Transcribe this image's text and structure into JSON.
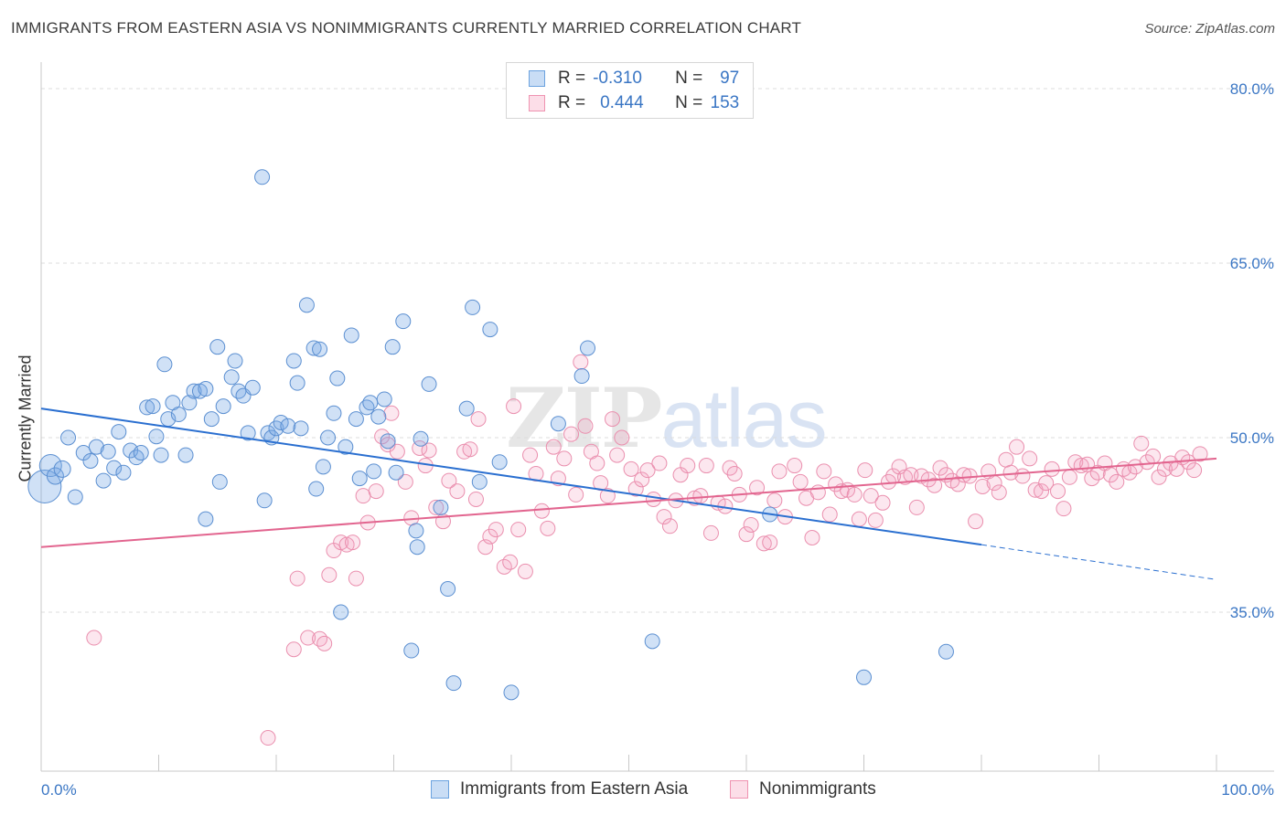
{
  "header": {
    "title": "IMMIGRANTS FROM EASTERN ASIA VS NONIMMIGRANTS CURRENTLY MARRIED CORRELATION CHART",
    "source": "Source: ZipAtlas.com"
  },
  "watermark": {
    "zip": "ZIP",
    "atlas": "atlas"
  },
  "legend": {
    "rows": [
      {
        "r_label": "R =",
        "r_value": "-0.310",
        "n_label": "N =",
        "n_value": "97",
        "color": "#6ba2df"
      },
      {
        "r_label": "R =",
        "r_value": "0.444",
        "n_label": "N =",
        "n_value": "153",
        "color": "#ef93b1"
      }
    ]
  },
  "bottom_legend": {
    "series1": "Immigrants from Eastern Asia",
    "series2": "Nonimmigrants"
  },
  "axes": {
    "ylabel": "Currently Married",
    "x_left_label": "0.0%",
    "x_right_label": "100.0%",
    "y_ticks": [
      "80.0%",
      "65.0%",
      "50.0%",
      "35.0%"
    ]
  },
  "colors": {
    "blue_fill": "rgba(120,170,230,0.35)",
    "blue_stroke": "#5b8fd1",
    "blue_line": "#2a6fd0",
    "pink_fill": "rgba(245,160,190,0.25)",
    "pink_stroke": "#ea8fae",
    "pink_line": "#e2658f",
    "tick_text": "#3a76c4"
  },
  "chart_data": {
    "type": "scatter",
    "x_range": [
      0,
      100
    ],
    "y_range": [
      20,
      82
    ],
    "grid_y": [
      80,
      65,
      50,
      35
    ],
    "series": [
      {
        "name": "Immigrants from Eastern Asia",
        "trend": {
          "x0": 0,
          "y0": 52.5,
          "x1": 80,
          "y1": 40.8,
          "dash_to_x": 100,
          "dash_to_y": 37.8
        },
        "points": [
          [
            0.3,
            45.8,
            18
          ],
          [
            0.8,
            47.6,
            12
          ],
          [
            1.2,
            46.7,
            9
          ],
          [
            1.8,
            47.3,
            9
          ],
          [
            2.3,
            50.0,
            8
          ],
          [
            2.9,
            44.9,
            8
          ],
          [
            3.6,
            48.7,
            8
          ],
          [
            4.2,
            48.0,
            8
          ],
          [
            4.7,
            49.2,
            8
          ],
          [
            5.3,
            46.3,
            8
          ],
          [
            5.7,
            48.8,
            8
          ],
          [
            6.2,
            47.4,
            8
          ],
          [
            6.6,
            50.5,
            8
          ],
          [
            7.0,
            47.0,
            8
          ],
          [
            7.6,
            48.9,
            8
          ],
          [
            8.1,
            48.3,
            8
          ],
          [
            8.5,
            48.7,
            8
          ],
          [
            9.0,
            52.6,
            8
          ],
          [
            9.5,
            52.7,
            8
          ],
          [
            9.8,
            50.1,
            8
          ],
          [
            10.2,
            48.5,
            8
          ],
          [
            10.5,
            56.3,
            8
          ],
          [
            10.8,
            51.6,
            8
          ],
          [
            11.2,
            53.0,
            8
          ],
          [
            11.7,
            52.0,
            8
          ],
          [
            12.3,
            48.5,
            8
          ],
          [
            12.6,
            53.0,
            8
          ],
          [
            13.0,
            54.0,
            8
          ],
          [
            13.5,
            54.0,
            8
          ],
          [
            14.0,
            54.2,
            8
          ],
          [
            14.0,
            43.0,
            8
          ],
          [
            14.5,
            51.6,
            8
          ],
          [
            15.0,
            57.8,
            8
          ],
          [
            15.2,
            46.2,
            8
          ],
          [
            15.5,
            52.7,
            8
          ],
          [
            16.2,
            55.2,
            8
          ],
          [
            16.5,
            56.6,
            8
          ],
          [
            16.8,
            54.0,
            8
          ],
          [
            17.2,
            53.6,
            8
          ],
          [
            17.6,
            50.4,
            8
          ],
          [
            18.0,
            54.3,
            8
          ],
          [
            18.8,
            72.4,
            8
          ],
          [
            19.0,
            44.6,
            8
          ],
          [
            19.3,
            50.4,
            8
          ],
          [
            19.6,
            50.0,
            8
          ],
          [
            20.0,
            50.8,
            8
          ],
          [
            20.4,
            51.3,
            8
          ],
          [
            21.0,
            51.0,
            8
          ],
          [
            21.5,
            56.6,
            8
          ],
          [
            21.8,
            54.7,
            8
          ],
          [
            22.1,
            50.8,
            8
          ],
          [
            22.6,
            61.4,
            8
          ],
          [
            23.2,
            57.7,
            8
          ],
          [
            23.4,
            45.6,
            8
          ],
          [
            23.7,
            57.6,
            8
          ],
          [
            24.0,
            47.5,
            8
          ],
          [
            24.4,
            50.0,
            8
          ],
          [
            24.9,
            52.1,
            8
          ],
          [
            25.2,
            55.1,
            8
          ],
          [
            25.5,
            35.0,
            8
          ],
          [
            25.9,
            49.2,
            8
          ],
          [
            26.4,
            58.8,
            8
          ],
          [
            26.8,
            51.6,
            8
          ],
          [
            27.1,
            46.5,
            8
          ],
          [
            27.7,
            52.6,
            8
          ],
          [
            28.0,
            53.0,
            8
          ],
          [
            28.3,
            47.1,
            8
          ],
          [
            28.7,
            51.8,
            8
          ],
          [
            29.2,
            53.3,
            8
          ],
          [
            29.5,
            49.7,
            8
          ],
          [
            29.9,
            57.8,
            8
          ],
          [
            30.2,
            47.0,
            8
          ],
          [
            30.8,
            60.0,
            8
          ],
          [
            31.5,
            31.7,
            8
          ],
          [
            31.9,
            42.0,
            8
          ],
          [
            32.0,
            40.6,
            8
          ],
          [
            32.3,
            49.9,
            8
          ],
          [
            33.0,
            54.6,
            8
          ],
          [
            34.0,
            44.0,
            8
          ],
          [
            34.6,
            37.0,
            8
          ],
          [
            35.1,
            28.9,
            8
          ],
          [
            36.2,
            52.5,
            8
          ],
          [
            36.7,
            61.2,
            8
          ],
          [
            37.3,
            46.2,
            8
          ],
          [
            38.2,
            59.3,
            8
          ],
          [
            39.0,
            47.9,
            8
          ],
          [
            40.0,
            28.1,
            8
          ],
          [
            44.0,
            51.2,
            8
          ],
          [
            46.0,
            55.3,
            8
          ],
          [
            46.5,
            57.7,
            8
          ],
          [
            52.0,
            32.5,
            8
          ],
          [
            62.0,
            43.4,
            8
          ],
          [
            70.0,
            29.4,
            8
          ],
          [
            77.0,
            31.6,
            8
          ]
        ]
      },
      {
        "name": "Nonimmigrants",
        "trend": {
          "x0": 0,
          "y0": 40.6,
          "x1": 100,
          "y1": 48.2
        },
        "points": [
          [
            4.5,
            32.8
          ],
          [
            19.3,
            24.2
          ],
          [
            21.5,
            31.8
          ],
          [
            21.8,
            37.9
          ],
          [
            22.7,
            32.8
          ],
          [
            23.7,
            32.7
          ],
          [
            24.1,
            32.3
          ],
          [
            24.5,
            38.2
          ],
          [
            24.9,
            40.3
          ],
          [
            25.5,
            41.0
          ],
          [
            26.0,
            40.8
          ],
          [
            26.5,
            41.0
          ],
          [
            26.8,
            37.9
          ],
          [
            27.4,
            45.0
          ],
          [
            27.8,
            42.7
          ],
          [
            28.5,
            45.4
          ],
          [
            29.0,
            50.1
          ],
          [
            29.5,
            49.4
          ],
          [
            29.8,
            52.1
          ],
          [
            30.3,
            48.8
          ],
          [
            31.0,
            46.2
          ],
          [
            31.5,
            43.1
          ],
          [
            32.2,
            49.1
          ],
          [
            32.7,
            47.6
          ],
          [
            33.0,
            48.9
          ],
          [
            33.6,
            44.0
          ],
          [
            34.2,
            42.8
          ],
          [
            34.7,
            46.3
          ],
          [
            35.4,
            45.4
          ],
          [
            36.0,
            48.8
          ],
          [
            36.5,
            49.0
          ],
          [
            37.0,
            44.7
          ],
          [
            37.2,
            51.6
          ],
          [
            37.8,
            40.6
          ],
          [
            38.2,
            41.5
          ],
          [
            38.7,
            42.1
          ],
          [
            39.4,
            38.9
          ],
          [
            39.9,
            39.3
          ],
          [
            40.2,
            52.7
          ],
          [
            40.6,
            42.1
          ],
          [
            41.2,
            38.5
          ],
          [
            41.6,
            48.5
          ],
          [
            42.1,
            46.9
          ],
          [
            42.6,
            43.7
          ],
          [
            43.1,
            42.2
          ],
          [
            43.6,
            49.2
          ],
          [
            44.0,
            46.5
          ],
          [
            44.5,
            48.2
          ],
          [
            45.1,
            50.3
          ],
          [
            45.5,
            45.1
          ],
          [
            45.9,
            56.5
          ],
          [
            46.3,
            51.0
          ],
          [
            46.8,
            48.8
          ],
          [
            47.3,
            47.8
          ],
          [
            47.6,
            46.1
          ],
          [
            48.2,
            45.0
          ],
          [
            48.6,
            51.6
          ],
          [
            49.0,
            48.5
          ],
          [
            49.4,
            50.0
          ],
          [
            50.2,
            47.3
          ],
          [
            50.6,
            45.6
          ],
          [
            51.1,
            46.4
          ],
          [
            51.6,
            47.2
          ],
          [
            52.1,
            44.7
          ],
          [
            52.6,
            47.8
          ],
          [
            53.0,
            43.2
          ],
          [
            53.5,
            42.4
          ],
          [
            54.0,
            44.6
          ],
          [
            54.4,
            46.8
          ],
          [
            55.0,
            47.6
          ],
          [
            55.6,
            44.8
          ],
          [
            56.1,
            45.0
          ],
          [
            56.6,
            47.6
          ],
          [
            57.0,
            41.8
          ],
          [
            57.6,
            44.4
          ],
          [
            58.2,
            44.1
          ],
          [
            58.6,
            47.4
          ],
          [
            59.0,
            46.9
          ],
          [
            59.4,
            45.1
          ],
          [
            60.0,
            41.7
          ],
          [
            60.4,
            42.5
          ],
          [
            60.9,
            45.7
          ],
          [
            61.5,
            40.9
          ],
          [
            62.0,
            41.0
          ],
          [
            62.4,
            44.6
          ],
          [
            62.8,
            47.1
          ],
          [
            63.3,
            43.2
          ],
          [
            64.1,
            47.6
          ],
          [
            64.6,
            46.2
          ],
          [
            65.1,
            44.8
          ],
          [
            65.6,
            41.4
          ],
          [
            66.1,
            45.3
          ],
          [
            66.6,
            47.1
          ],
          [
            67.1,
            43.4
          ],
          [
            67.6,
            46.0
          ],
          [
            68.1,
            45.4
          ],
          [
            68.6,
            45.5
          ],
          [
            69.2,
            45.1
          ],
          [
            69.6,
            43.0
          ],
          [
            70.1,
            47.2
          ],
          [
            70.6,
            45.0
          ],
          [
            71.0,
            42.9
          ],
          [
            71.6,
            44.4
          ],
          [
            72.1,
            46.2
          ],
          [
            72.5,
            46.7
          ],
          [
            73.0,
            47.5
          ],
          [
            73.5,
            46.6
          ],
          [
            74.0,
            46.8
          ],
          [
            74.5,
            44.0
          ],
          [
            74.9,
            46.7
          ],
          [
            75.5,
            46.4
          ],
          [
            76.0,
            45.9
          ],
          [
            76.5,
            47.4
          ],
          [
            77.0,
            46.8
          ],
          [
            77.5,
            46.3
          ],
          [
            78.0,
            46.0
          ],
          [
            78.5,
            46.8
          ],
          [
            79.0,
            46.7
          ],
          [
            79.5,
            42.8
          ],
          [
            80.1,
            45.8
          ],
          [
            80.6,
            47.1
          ],
          [
            81.1,
            46.1
          ],
          [
            81.5,
            45.3
          ],
          [
            82.1,
            48.1
          ],
          [
            82.5,
            47.0
          ],
          [
            83.0,
            49.2
          ],
          [
            83.5,
            46.7
          ],
          [
            84.1,
            48.2
          ],
          [
            84.6,
            45.5
          ],
          [
            85.1,
            45.4
          ],
          [
            85.5,
            46.1
          ],
          [
            86.0,
            47.3
          ],
          [
            86.5,
            45.4
          ],
          [
            87.0,
            43.9
          ],
          [
            87.5,
            46.6
          ],
          [
            88.0,
            47.9
          ],
          [
            88.5,
            47.6
          ],
          [
            89.0,
            47.7
          ],
          [
            89.4,
            46.5
          ],
          [
            89.9,
            47.0
          ],
          [
            90.5,
            47.8
          ],
          [
            91.0,
            46.8
          ],
          [
            91.5,
            46.2
          ],
          [
            92.1,
            47.3
          ],
          [
            92.6,
            47.0
          ],
          [
            93.1,
            47.5
          ],
          [
            93.6,
            49.5
          ],
          [
            94.1,
            47.9
          ],
          [
            94.6,
            48.4
          ],
          [
            95.1,
            46.6
          ],
          [
            95.6,
            47.3
          ],
          [
            96.1,
            47.8
          ],
          [
            96.6,
            47.3
          ],
          [
            97.1,
            48.3
          ],
          [
            97.6,
            47.9
          ],
          [
            98.1,
            47.2
          ],
          [
            98.6,
            48.6
          ]
        ]
      }
    ]
  }
}
